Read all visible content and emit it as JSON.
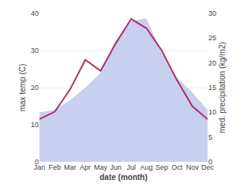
{
  "chart_data": {
    "type": "line",
    "xlabel": "date (month)",
    "ylabel": "max temp (C)",
    "y2label": "med. precipitation (kg/m2)",
    "categories": [
      "Jan",
      "Feb",
      "Mar",
      "Apr",
      "May",
      "Jun",
      "Jul",
      "Aug",
      "Sep",
      "Oct",
      "Nov",
      "Dec"
    ],
    "series": [
      {
        "type": "area",
        "axis": "y2",
        "color": "#c8d0f0",
        "values": [
          10.0,
          10.5,
          12.5,
          15.0,
          18.0,
          24.5,
          28.5,
          29.0,
          22.0,
          17.0,
          14.0,
          10.5
        ]
      },
      {
        "type": "line",
        "color": "#b03060",
        "values": [
          11.5,
          13.5,
          19.5,
          27.5,
          24.5,
          32.0,
          38.5,
          36.0,
          30.0,
          22.0,
          15.0,
          11.5
        ]
      }
    ],
    "ylim": [
      0,
      40
    ],
    "yticks": [
      0,
      10,
      20,
      30,
      40
    ],
    "y2lim": [
      0,
      30
    ],
    "y2ticks": [
      0,
      5,
      10,
      15,
      20,
      25,
      30
    ],
    "grid": true
  }
}
